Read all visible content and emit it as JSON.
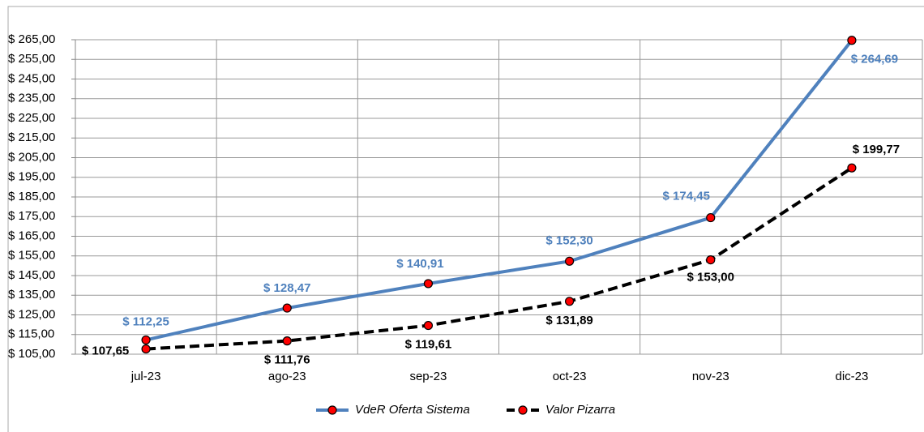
{
  "chart_data": {
    "type": "line",
    "categories": [
      "jul-23",
      "ago-23",
      "sep-23",
      "oct-23",
      "nov-23",
      "dic-23"
    ],
    "series": [
      {
        "name": "VdeR Oferta Sistema",
        "color": "#4f81bd",
        "style": "solid",
        "values": [
          112.25,
          128.47,
          140.91,
          152.3,
          174.45,
          264.69
        ],
        "value_labels": [
          "$ 112,25",
          "$ 128,47",
          "$ 140,91",
          "$ 152,30",
          "$ 174,45",
          "$ 264,69"
        ]
      },
      {
        "name": "Valor Pizarra",
        "color": "#000000",
        "style": "dashed",
        "values": [
          107.65,
          111.76,
          119.61,
          131.89,
          153.0,
          199.77
        ],
        "value_labels": [
          "$ 107,65",
          "$ 111,76",
          "$ 119,61",
          "$ 131,89",
          "$ 153,00",
          "$ 199,77"
        ]
      }
    ],
    "marker_color": "#ff0000",
    "ylim": [
      105,
      265
    ],
    "yticks": [
      {
        "value": 105,
        "label": "$ 105,00"
      },
      {
        "value": 115,
        "label": "$ 115,00"
      },
      {
        "value": 125,
        "label": "$ 125,00"
      },
      {
        "value": 135,
        "label": "$ 135,00"
      },
      {
        "value": 145,
        "label": "$ 145,00"
      },
      {
        "value": 155,
        "label": "$ 155,00"
      },
      {
        "value": 165,
        "label": "$ 165,00"
      },
      {
        "value": 175,
        "label": "$ 175,00"
      },
      {
        "value": 185,
        "label": "$ 185,00"
      },
      {
        "value": 195,
        "label": "$ 195,00"
      },
      {
        "value": 205,
        "label": "$ 205,00"
      },
      {
        "value": 215,
        "label": "$ 215,00"
      },
      {
        "value": 225,
        "label": "$ 225,00"
      },
      {
        "value": 235,
        "label": "$ 235,00"
      },
      {
        "value": 245,
        "label": "$ 245,00"
      },
      {
        "value": 255,
        "label": "$ 255,00"
      },
      {
        "value": 265,
        "label": "$ 265,00"
      }
    ],
    "grid": true,
    "legend": "bottom"
  }
}
